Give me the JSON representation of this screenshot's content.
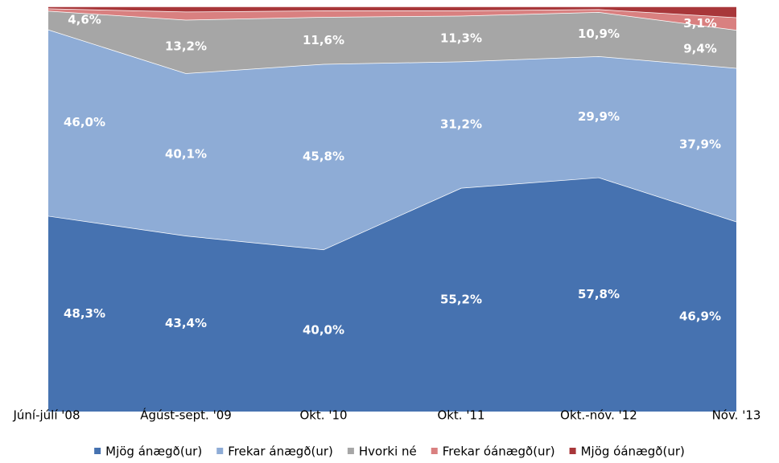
{
  "chart_data": {
    "type": "area",
    "stacked": true,
    "categories": [
      "Júní-júlí '08",
      "Ágúst-sept. '09",
      "Okt. '10",
      "Okt. '11",
      "Okt.-nóv. '12",
      "Nóv. '13"
    ],
    "ylim": [
      0,
      100
    ],
    "legend": "bottom",
    "series": [
      {
        "name": "Mjög ánægð(ur)",
        "color": "#4672b0",
        "values": [
          48.3,
          43.4,
          40.0,
          55.2,
          57.8,
          46.9
        ],
        "value_labels": [
          "48,3%",
          "43,4%",
          "40,0%",
          "55,2%",
          "57,8%",
          "46,9%"
        ]
      },
      {
        "name": "Frekar ánægð(ur)",
        "color": "#8eacd6",
        "values": [
          46.0,
          40.1,
          45.8,
          31.2,
          29.9,
          37.9
        ],
        "value_labels": [
          "46,0%",
          "40,1%",
          "45,8%",
          "31,2%",
          "29,9%",
          "37,9%"
        ]
      },
      {
        "name": "Hvorki né",
        "color": "#a6a6a6",
        "values": [
          4.6,
          13.2,
          11.6,
          11.3,
          10.9,
          9.4
        ],
        "value_labels": [
          "4,6%",
          "13,2%",
          "11,6%",
          "11,3%",
          "10,9%",
          "9,4%"
        ]
      },
      {
        "name": "Frekar óánægð(ur)",
        "color": "#d98080",
        "values": [
          0.6,
          2.0,
          1.6,
          1.3,
          0.7,
          3.1
        ],
        "value_labels": [
          null,
          null,
          null,
          null,
          null,
          "3,1%"
        ]
      },
      {
        "name": "Mjög óánægð(ur)",
        "color": "#a8373a",
        "values": [
          0.5,
          1.3,
          1.0,
          1.0,
          0.7,
          2.7
        ]
      }
    ]
  }
}
